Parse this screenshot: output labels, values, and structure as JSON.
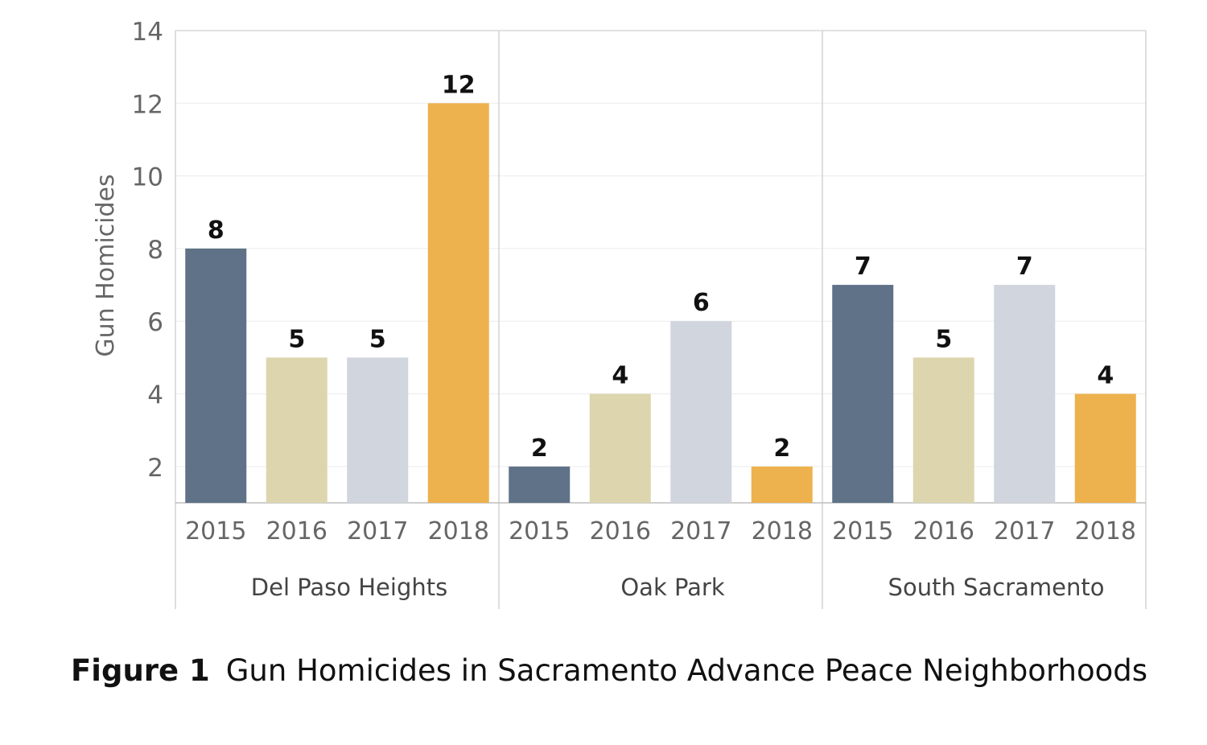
{
  "chart_data": {
    "type": "bar",
    "ylabel": "Gun Homicides",
    "ylim": [
      1,
      14
    ],
    "yticks": [
      2,
      4,
      6,
      8,
      10,
      12,
      14
    ],
    "grid": true,
    "legend": "none",
    "categories": [
      "2015",
      "2016",
      "2017",
      "2018"
    ],
    "groups": [
      {
        "name": "Del Paso Heights",
        "values": [
          8,
          5,
          5,
          12
        ]
      },
      {
        "name": "Oak Park",
        "values": [
          2,
          4,
          6,
          2
        ]
      },
      {
        "name": "South Sacramento",
        "values": [
          7,
          5,
          7,
          4
        ]
      }
    ],
    "colors": {
      "2015": "#5f7287",
      "2016": "#ddd5ad",
      "2017": "#d0d5de",
      "2018": "#edb24d"
    }
  },
  "caption": {
    "label": "Figure 1",
    "text": "Gun Homicides in Sacramento Advance Peace Neighborhoods"
  }
}
